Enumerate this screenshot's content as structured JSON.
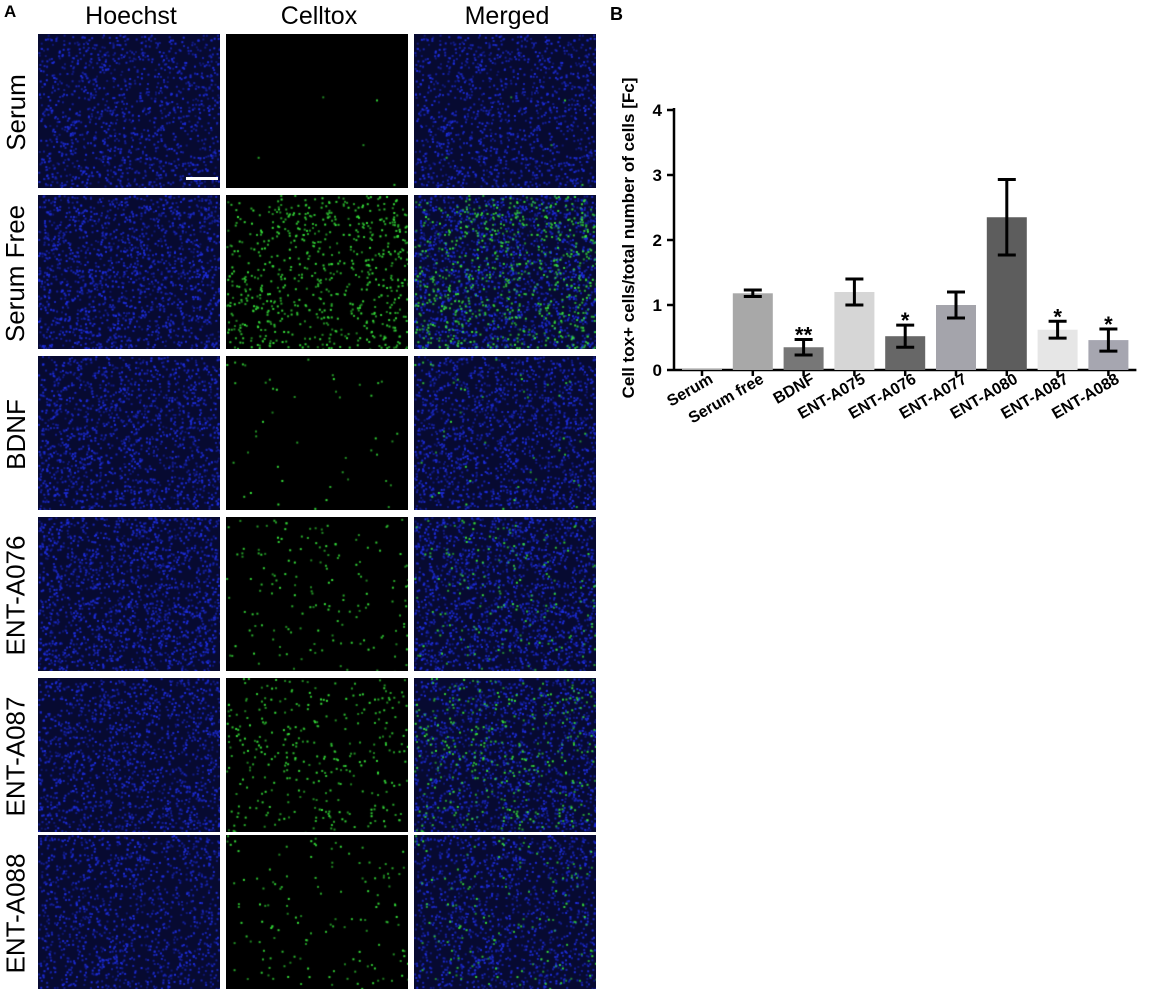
{
  "panel_a": {
    "letter": "A",
    "columns": [
      "Hoechst",
      "Celltox",
      "Merged"
    ],
    "rows": [
      {
        "label": "Serum",
        "blue_density": 0.75,
        "green_count": 5
      },
      {
        "label": "Serum Free",
        "blue_density": 0.95,
        "green_count": 700
      },
      {
        "label": "BDNF",
        "blue_density": 0.9,
        "green_count": 45
      },
      {
        "label": "ENT-A076",
        "blue_density": 1.0,
        "green_count": 160
      },
      {
        "label": "ENT-A087",
        "blue_density": 0.85,
        "green_count": 330
      },
      {
        "label": "ENT-A088",
        "blue_density": 0.75,
        "green_count": 140
      }
    ],
    "colors": {
      "nuclei": "#1e2ee0",
      "celltox": "#35e03a",
      "background": "#000000"
    }
  },
  "panel_b": {
    "letter": "B",
    "chart_data": {
      "type": "bar",
      "ylabel": "Cell tox+ cells/total number of cells [Fc]",
      "xlabel": "",
      "ylim": [
        0,
        4
      ],
      "yticks": [
        "0",
        "1",
        "2",
        "3",
        "4"
      ],
      "categories": [
        "Serum",
        "Serum free",
        "BDNF",
        "ENT-A075",
        "ENT-A076",
        "ENT-A077",
        "ENT-A080",
        "ENT-A087",
        "ENT-A088"
      ],
      "values": [
        0.02,
        1.18,
        0.35,
        1.2,
        0.52,
        1.0,
        2.35,
        0.62,
        0.46
      ],
      "errors": [
        0.0,
        0.05,
        0.12,
        0.2,
        0.17,
        0.2,
        0.58,
        0.13,
        0.17
      ],
      "significance": [
        "",
        "",
        "**",
        "",
        "*",
        "",
        "",
        "*",
        "*"
      ],
      "bar_colors": [
        "#a8a8a8",
        "#a8a8a8",
        "#777777",
        "#d6d6d6",
        "#676767",
        "#a4a4ab",
        "#5d5d5d",
        "#e6e6e6",
        "#a6a6b0"
      ],
      "grid": false,
      "legend": "none"
    }
  }
}
